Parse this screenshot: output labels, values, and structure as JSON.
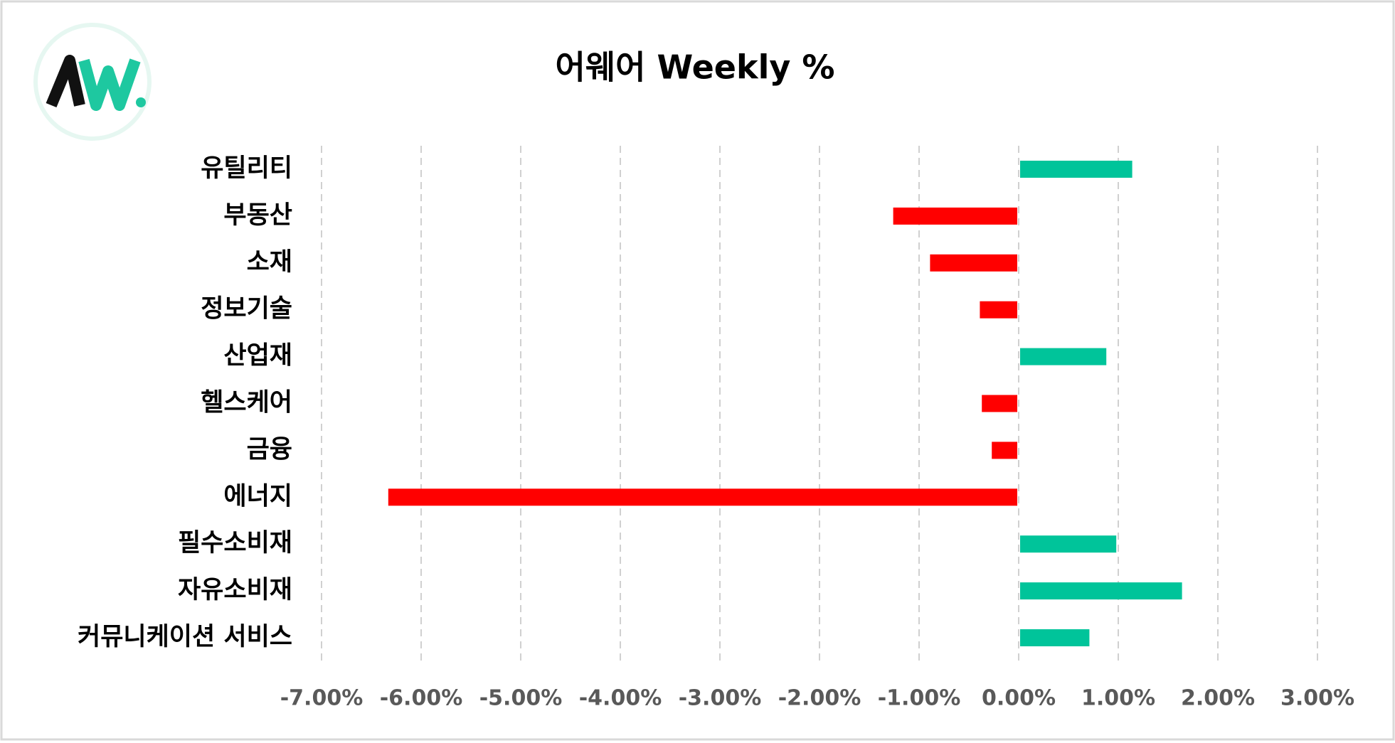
{
  "chart_data": {
    "type": "hbar",
    "title": "어웨어 Weekly %",
    "categories": [
      "유틸리티",
      "부동산",
      "소재",
      "정보기술",
      "산업재",
      "헬스케어",
      "금융",
      "에너지",
      "필수소비재",
      "자유소비재",
      "커뮤니케이션 서비스"
    ],
    "values": [
      1.14,
      -1.26,
      -0.89,
      -0.39,
      0.88,
      -0.37,
      -0.27,
      -6.33,
      0.98,
      1.64,
      0.71
    ],
    "color_positive": "#00c49a",
    "color_negative": "#ff0000",
    "xlim": [
      -7,
      3
    ],
    "xticks": [
      {
        "value": -7,
        "label": "-7.00%"
      },
      {
        "value": -6,
        "label": "-6.00%"
      },
      {
        "value": -5,
        "label": "-5.00%"
      },
      {
        "value": -4,
        "label": "-4.00%"
      },
      {
        "value": -3,
        "label": "-3.00%"
      },
      {
        "value": -2,
        "label": "-2.00%"
      },
      {
        "value": -1,
        "label": "-1.00%"
      },
      {
        "value": 0,
        "label": "0.00%"
      },
      {
        "value": 1,
        "label": "1.00%"
      },
      {
        "value": 2,
        "label": "2.00%"
      },
      {
        "value": 3,
        "label": "3.00%"
      }
    ],
    "grid": true
  }
}
